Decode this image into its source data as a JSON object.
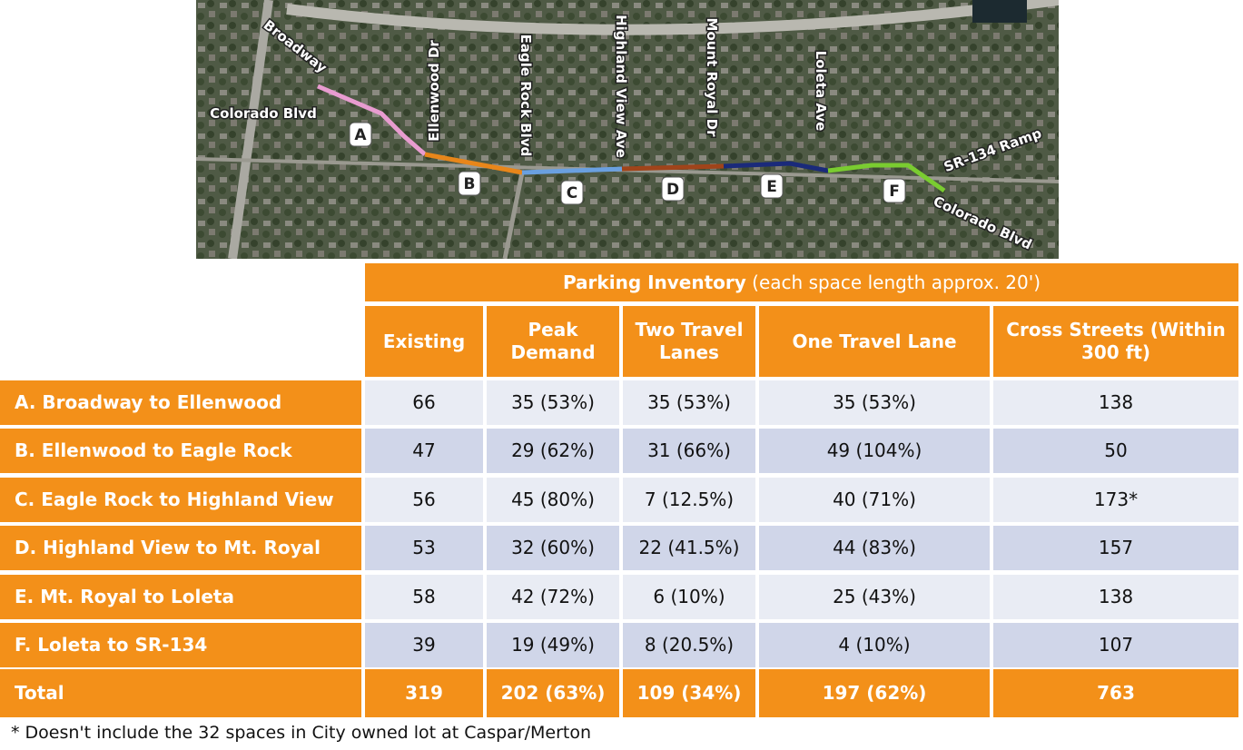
{
  "map": {
    "streets": [
      "Broadway",
      "Colorado Blvd",
      "Ellenwood Dr",
      "Eagle Rock Blvd",
      "Highland View Ave",
      "Mount Royal Dr",
      "Loleta Ave",
      "SR-134 Ramp",
      "Colorado Blvd"
    ],
    "segments": [
      "A",
      "B",
      "C",
      "D",
      "E",
      "F"
    ]
  },
  "table": {
    "title": "Parking Inventory",
    "subtitle": "(each space length approx. 20')",
    "columns": [
      "Existing",
      "Peak Demand",
      "Two Travel Lanes",
      "One Travel Lane",
      "Cross Streets (Within 300 ft)"
    ],
    "rows": [
      [
        "A. Broadway to Ellenwood",
        "66",
        "35 (53%)",
        "35 (53%)",
        "35 (53%)",
        "138"
      ],
      [
        "B. Ellenwood to Eagle Rock",
        "47",
        "29 (62%)",
        "31 (66%)",
        "49 (104%)",
        "50"
      ],
      [
        "C. Eagle Rock to Highland View",
        "56",
        "45 (80%)",
        "7 (12.5%)",
        "40 (71%)",
        "173*"
      ],
      [
        "D. Highland View to Mt. Royal",
        "53",
        "32 (60%)",
        "22 (41.5%)",
        "44 (83%)",
        "157"
      ],
      [
        "E. Mt. Royal to Loleta",
        "58",
        "42 (72%)",
        "6 (10%)",
        "25 (43%)",
        "138"
      ],
      [
        "F. Loleta to SR-134",
        "39",
        "19 (49%)",
        "8 (20.5%)",
        "4 (10%)",
        "107"
      ]
    ],
    "total": [
      "Total",
      "319",
      "202 (63%)",
      "109 (34%)",
      "197 (62%)",
      "763"
    ]
  },
  "footnote": "* Doesn't include the 32 spaces in City owned lot at Caspar/Merton"
}
